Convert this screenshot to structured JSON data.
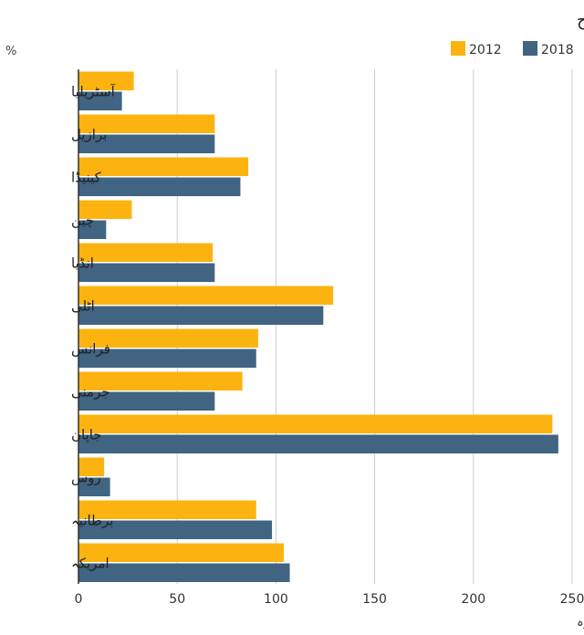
{
  "chart_data": {
    "type": "bar",
    "orientation": "horizontal",
    "title": "قرضے اور مجموعی ملکی پیداوار کی شرح",
    "unit_label": "%",
    "source": "ذریعہ: عالمی مالیاتی ادارہ",
    "categories": [
      "آسٹریلیا",
      "برازیل",
      "کینیڈا",
      "چین",
      "انڈیا",
      "اٹلی",
      "فرانس",
      "جرمنی",
      "جاپان",
      "روس",
      "برطانیہ",
      "امریکہ"
    ],
    "series": [
      {
        "name": "2012",
        "color": "#fcb310",
        "values": [
          28,
          69,
          86,
          27,
          68,
          129,
          91,
          83,
          240,
          13,
          90,
          104
        ]
      },
      {
        "name": "2018",
        "color": "#406482",
        "values": [
          22,
          69,
          82,
          14,
          69,
          124,
          90,
          69,
          243,
          16,
          98,
          107
        ]
      }
    ],
    "xlim": [
      0,
      250
    ],
    "xticks": [
      0,
      50,
      100,
      150,
      200,
      250
    ],
    "grid": true,
    "legend_position": "top-right"
  }
}
